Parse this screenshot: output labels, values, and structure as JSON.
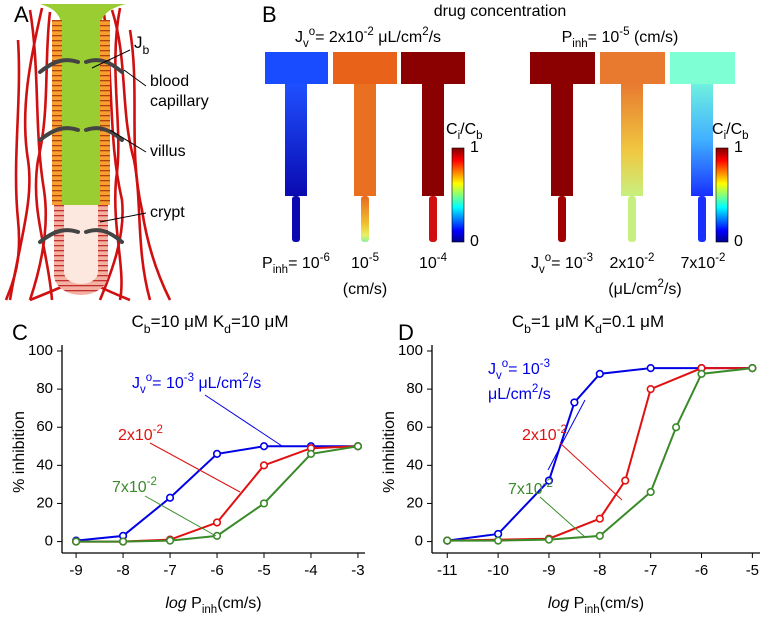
{
  "panel_a": {
    "label": "A",
    "jb": [
      {
        "text": "J"
      },
      {
        "text": "b",
        "style": "sub"
      }
    ],
    "blood": "blood",
    "capillary": "capillary",
    "villus": "villus",
    "crypt": "crypt"
  },
  "panel_b": {
    "label": "B",
    "title": "drug concentration",
    "left_header": [
      {
        "text": "J"
      },
      {
        "text": "v",
        "style": "sub"
      },
      {
        "text": "o",
        "style": "sup"
      },
      {
        "text": "= 2x10"
      },
      {
        "text": "-2",
        "style": "sup"
      },
      {
        "text": " μL/cm"
      },
      {
        "text": "2",
        "style": "sup"
      },
      {
        "text": "/s"
      }
    ],
    "right_header": [
      {
        "text": "P"
      },
      {
        "text": "inh",
        "style": "sub"
      },
      {
        "text": "= 10"
      },
      {
        "text": "-5",
        "style": "sup"
      },
      {
        "text": " (cm/s)"
      }
    ],
    "colorbar_label": [
      {
        "text": "C"
      },
      {
        "text": "i",
        "style": "sub"
      },
      {
        "text": "/C"
      },
      {
        "text": "b",
        "style": "sub"
      }
    ],
    "colorbar_ticks": [
      0,
      1
    ],
    "left_labels": [
      [
        {
          "text": "P"
        },
        {
          "text": "inh",
          "style": "sub"
        },
        {
          "text": "= 10"
        },
        {
          "text": "-6",
          "style": "sup"
        }
      ],
      [
        {
          "text": "10"
        },
        {
          "text": "-5",
          "style": "sup"
        }
      ],
      [
        {
          "text": "(cm/s)"
        }
      ],
      [
        {
          "text": "10"
        },
        {
          "text": "-4",
          "style": "sup"
        }
      ]
    ],
    "right_labels": [
      [
        {
          "text": "J"
        },
        {
          "text": "v",
          "style": "sub"
        },
        {
          "text": "o",
          "style": "sup"
        },
        {
          "text": "= 10"
        },
        {
          "text": "-3",
          "style": "sup"
        }
      ],
      [
        {
          "text": "2x10"
        },
        {
          "text": "-2",
          "style": "sup"
        }
      ],
      [
        {
          "text": "(μL/cm"
        },
        {
          "text": "2",
          "style": "sup"
        },
        {
          "text": "/s)"
        }
      ],
      [
        {
          "text": "7x10"
        },
        {
          "text": "-2",
          "style": "sup"
        }
      ]
    ]
  },
  "chart_data": [
    {
      "type": "line",
      "panel": "C",
      "title": [
        {
          "text": "C"
        },
        {
          "text": "b",
          "style": "sub"
        },
        {
          "text": "=10 μM    K"
        },
        {
          "text": "d",
          "style": "sub"
        },
        {
          "text": "=10 μM"
        }
      ],
      "x_label": [
        {
          "text": "log",
          "style": "it"
        },
        {
          "text": " P"
        },
        {
          "text": "inh",
          "style": "sub"
        },
        {
          "text": "(cm/s)"
        }
      ],
      "y_label": "% inhibition",
      "xlim": [
        -9.3,
        -2.85
      ],
      "ylim": [
        -6,
        100
      ],
      "xticks": [
        -9,
        -8,
        -7,
        -6,
        -5,
        -4,
        -3
      ],
      "yticks": [
        0,
        20,
        40,
        60,
        80,
        100
      ],
      "series": [
        {
          "name": [
            [
              {
                "text": "J"
              },
              {
                "text": "v",
                "style": "sub"
              },
              {
                "text": "o",
                "style": "sup"
              },
              {
                "text": "= 10"
              },
              {
                "text": "-3",
                "style": "sup"
              },
              {
                "text": " μL/cm"
              },
              {
                "text": "2",
                "style": "sup"
              },
              {
                "text": "/s"
              }
            ]
          ],
          "color": "#0000e6",
          "x": [
            -9,
            -8,
            -7,
            -6,
            -5,
            -4,
            -3
          ],
          "values": [
            0.5,
            3,
            23,
            46,
            50,
            50,
            50
          ]
        },
        {
          "name": [
            [
              {
                "text": "2x10"
              },
              {
                "text": "-2",
                "style": "sup"
              }
            ]
          ],
          "color": "#e01010",
          "x": [
            -9,
            -8,
            -7,
            -6,
            -5,
            -4,
            -3
          ],
          "values": [
            0,
            0,
            1,
            10,
            40,
            49,
            50
          ]
        },
        {
          "name": [
            [
              {
                "text": "7x10"
              },
              {
                "text": "-2",
                "style": "sup"
              }
            ]
          ],
          "color": "#3a8a2a",
          "x": [
            -9,
            -8,
            -7,
            -6,
            -5,
            -4,
            -3
          ],
          "values": [
            0,
            0,
            0.5,
            3,
            20,
            46,
            50
          ]
        }
      ]
    },
    {
      "type": "line",
      "panel": "D",
      "title": [
        {
          "text": "C"
        },
        {
          "text": "b",
          "style": "sub"
        },
        {
          "text": "=1 μM    K"
        },
        {
          "text": "d",
          "style": "sub"
        },
        {
          "text": "=0.1 μM"
        }
      ],
      "x_label": [
        {
          "text": "log",
          "style": "it"
        },
        {
          "text": " P"
        },
        {
          "text": "inh",
          "style": "sub"
        },
        {
          "text": "(cm/s)"
        }
      ],
      "y_label": "% inhibition",
      "xlim": [
        -11.3,
        -4.85
      ],
      "ylim": [
        -6,
        100
      ],
      "xticks": [
        -11,
        -10,
        -9,
        -8,
        -7,
        -6,
        -5
      ],
      "yticks": [
        0,
        20,
        40,
        60,
        80,
        100
      ],
      "series": [
        {
          "name": [
            [
              {
                "text": "J"
              },
              {
                "text": "v",
                "style": "sub"
              },
              {
                "text": "o",
                "style": "sup"
              },
              {
                "text": "= 10"
              },
              {
                "text": "-3",
                "style": "sup"
              }
            ],
            [
              {
                "text": "μL/cm"
              },
              {
                "text": "2",
                "style": "sup"
              },
              {
                "text": "/s"
              }
            ]
          ],
          "color": "#0000e6",
          "x": [
            -11,
            -10,
            -9,
            -8.5,
            -8,
            -7,
            -6,
            -5
          ],
          "values": [
            0.5,
            4,
            32,
            73,
            88,
            91,
            91,
            91
          ]
        },
        {
          "name": [
            [
              {
                "text": "2x10"
              },
              {
                "text": "-2",
                "style": "sup"
              }
            ]
          ],
          "color": "#e01010",
          "x": [
            -11,
            -9,
            -8,
            -7.5,
            -7,
            -6,
            -5
          ],
          "values": [
            0.5,
            1.5,
            12,
            32,
            80,
            91,
            91
          ]
        },
        {
          "name": [
            [
              {
                "text": "7x10"
              },
              {
                "text": "-2",
                "style": "sup"
              }
            ]
          ],
          "color": "#3a8a2a",
          "x": [
            -11,
            -10,
            -9,
            -8,
            -7,
            -6.5,
            -6,
            -5
          ],
          "values": [
            0.5,
            0.5,
            1,
            3,
            26,
            60,
            88,
            91
          ]
        }
      ]
    }
  ]
}
